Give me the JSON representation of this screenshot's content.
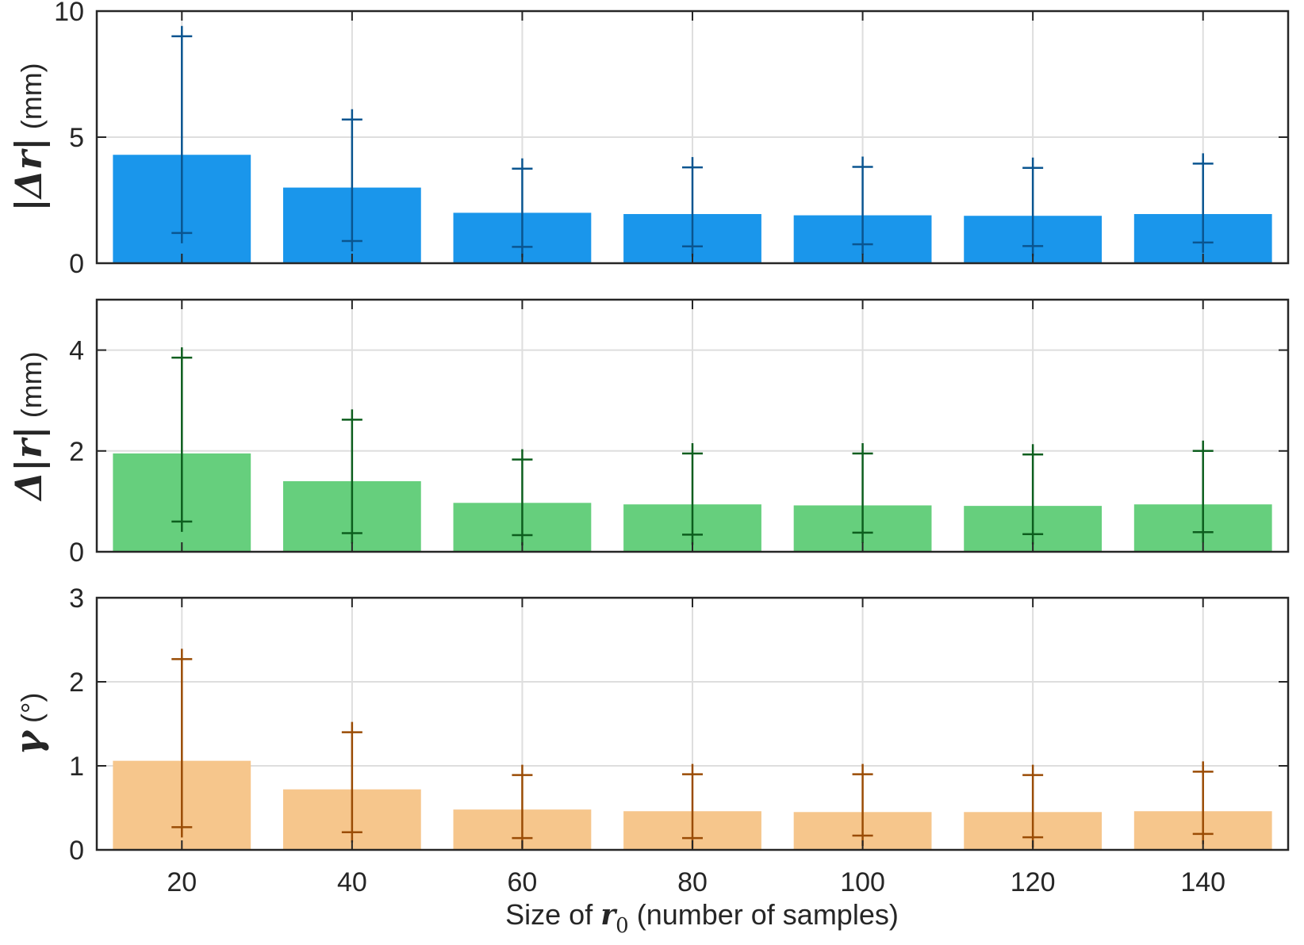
{
  "chart_data": {
    "type": "bar",
    "categories": [
      "20",
      "40",
      "60",
      "80",
      "100",
      "120",
      "140"
    ],
    "x": [
      20,
      40,
      60,
      80,
      100,
      120,
      140
    ],
    "xlabel": "Size of r0 (number of samples)",
    "xlabel_parts": {
      "prefix": "Size of ",
      "symbol": "r",
      "subscript": "0",
      "suffix": " (number of samples)"
    },
    "panels": [
      {
        "name": "delta-r-magnitude",
        "ylabel_text": "|Δr| (mm)",
        "ylabel_parts": {
          "math": "|Δr|",
          "unit": " (mm)"
        },
        "ylim": [
          0,
          10
        ],
        "yticks": [
          0,
          5,
          10
        ],
        "color": "#1a96eb",
        "errorbar_color": "#0a5590",
        "values": [
          4.3,
          3.0,
          2.0,
          1.95,
          1.9,
          1.88,
          1.95
        ],
        "err_low": [
          1.2,
          0.88,
          0.65,
          0.67,
          0.75,
          0.68,
          0.82
        ],
        "err_high": [
          9.0,
          5.7,
          3.75,
          3.8,
          3.82,
          3.78,
          3.95
        ]
      },
      {
        "name": "delta-magnitude-r",
        "ylabel_text": "Δ|r| (mm)",
        "ylabel_parts": {
          "math": "Δ|r|",
          "unit": " (mm)"
        },
        "ylim": [
          0,
          5
        ],
        "yticks": [
          0,
          2,
          4
        ],
        "color": "#66cf7d",
        "errorbar_color": "#0d5e1e",
        "values": [
          1.95,
          1.4,
          0.97,
          0.94,
          0.92,
          0.91,
          0.94
        ],
        "err_low": [
          0.6,
          0.37,
          0.33,
          0.34,
          0.38,
          0.35,
          0.39
        ],
        "err_high": [
          3.85,
          2.62,
          1.83,
          1.95,
          1.95,
          1.93,
          2.0
        ]
      },
      {
        "name": "gamma-angle",
        "ylabel_text": "γ (°)",
        "ylabel_parts": {
          "math": "γ",
          "unit": " (°)"
        },
        "ylim": [
          0,
          3
        ],
        "yticks": [
          0,
          1,
          2,
          3
        ],
        "color": "#f6c68c",
        "errorbar_color": "#9a4c05",
        "values": [
          1.06,
          0.72,
          0.48,
          0.46,
          0.45,
          0.45,
          0.46
        ],
        "err_low": [
          0.27,
          0.21,
          0.14,
          0.14,
          0.17,
          0.15,
          0.19
        ],
        "err_high": [
          2.27,
          1.4,
          0.89,
          0.9,
          0.9,
          0.89,
          0.93
        ]
      }
    ]
  }
}
